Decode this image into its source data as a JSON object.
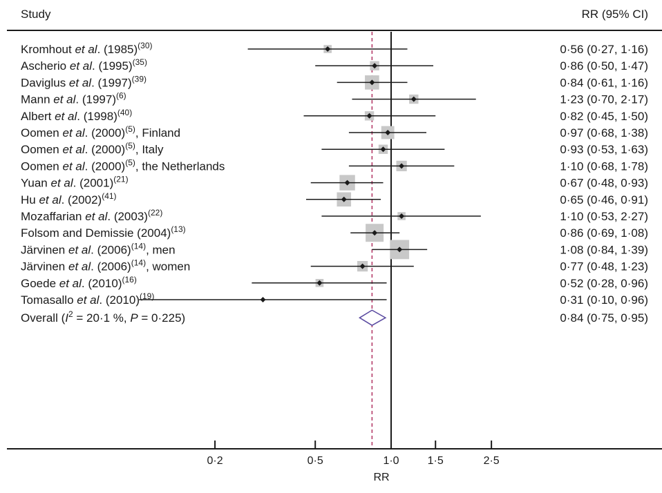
{
  "header": {
    "study_label": "Study",
    "estimate_label": "RR (95% CI)"
  },
  "chart_data": {
    "type": "forest",
    "xlabel": "RR",
    "x_scale": "log",
    "xlim": [
      0.1,
      3.5
    ],
    "xticks": [
      {
        "value": 0.2,
        "label": "0·2"
      },
      {
        "value": 0.5,
        "label": "0·5"
      },
      {
        "value": 1.0,
        "label": "1·0"
      },
      {
        "value": 1.5,
        "label": "1·5"
      },
      {
        "value": 2.5,
        "label": "2·5"
      }
    ],
    "null_line": 1.0,
    "pooled_line": 0.84,
    "studies": [
      {
        "pre": "Kromhout ",
        "it": "et al",
        "post": ". (1985)",
        "sup": "(30)",
        "tail": "",
        "rr": 0.56,
        "lo": 0.27,
        "hi": 1.16,
        "weight": 2,
        "ci_text": "0·56 (0·27, 1·16)"
      },
      {
        "pre": "Ascherio ",
        "it": "et al",
        "post": ". (1995)",
        "sup": "(35)",
        "tail": "",
        "rr": 0.86,
        "lo": 0.5,
        "hi": 1.47,
        "weight": 3,
        "ci_text": "0·86 (0·50, 1·47)"
      },
      {
        "pre": "Daviglus ",
        "it": "et al",
        "post": ". (1997)",
        "sup": "(39)",
        "tail": "",
        "rr": 0.84,
        "lo": 0.61,
        "hi": 1.16,
        "weight": 7,
        "ci_text": "0·84 (0·61, 1·16)"
      },
      {
        "pre": "Mann ",
        "it": "et al",
        "post": ". (1997)",
        "sup": "(6)",
        "tail": "",
        "rr": 1.23,
        "lo": 0.7,
        "hi": 2.17,
        "weight": 3,
        "ci_text": "1·23 (0·70, 2·17)"
      },
      {
        "pre": "Albert ",
        "it": "et al",
        "post": ". (1998)",
        "sup": "(40)",
        "tail": "",
        "rr": 0.82,
        "lo": 0.45,
        "hi": 1.5,
        "weight": 3,
        "ci_text": "0·82 (0·45, 1·50)"
      },
      {
        "pre": "Oomen ",
        "it": "et al",
        "post": ". (2000)",
        "sup": "(5)",
        "tail": ", Finland",
        "rr": 0.97,
        "lo": 0.68,
        "hi": 1.38,
        "weight": 6,
        "ci_text": "0·97 (0·68, 1·38)"
      },
      {
        "pre": "Oomen ",
        "it": "et al",
        "post": ". (2000)",
        "sup": "(5)",
        "tail": ", Italy",
        "rr": 0.93,
        "lo": 0.53,
        "hi": 1.63,
        "weight": 3,
        "ci_text": "0·93 (0·53, 1·63)"
      },
      {
        "pre": "Oomen ",
        "it": "et al",
        "post": ". (2000)",
        "sup": "(5)",
        "tail": ", the Netherlands",
        "rr": 1.1,
        "lo": 0.68,
        "hi": 1.78,
        "weight": 4,
        "ci_text": "1·10 (0·68, 1·78)"
      },
      {
        "pre": "Yuan ",
        "it": "et al",
        "post": ". (2001)",
        "sup": "(21)",
        "tail": "",
        "rr": 0.67,
        "lo": 0.48,
        "hi": 0.93,
        "weight": 8,
        "ci_text": "0·67 (0·48, 0·93)"
      },
      {
        "pre": "Hu ",
        "it": "et al",
        "post": ". (2002)",
        "sup": "(41)",
        "tail": "",
        "rr": 0.65,
        "lo": 0.46,
        "hi": 0.91,
        "weight": 7,
        "ci_text": "0·65 (0·46, 0·91)"
      },
      {
        "pre": "Mozaffarian ",
        "it": "et al",
        "post": ". (2003)",
        "sup": "(22)",
        "tail": "",
        "rr": 1.1,
        "lo": 0.53,
        "hi": 2.27,
        "weight": 2,
        "ci_text": "1·10 (0·53, 2·27)"
      },
      {
        "pre": "Folsom and Demissie (2004)",
        "it": "",
        "post": "",
        "sup": "(13)",
        "tail": "",
        "rr": 0.86,
        "lo": 0.69,
        "hi": 1.08,
        "weight": 10,
        "ci_text": "0·86 (0·69, 1·08)"
      },
      {
        "pre": "Järvinen ",
        "it": "et al",
        "post": ". (2006)",
        "sup": "(14)",
        "tail": ", men",
        "rr": 1.08,
        "lo": 0.84,
        "hi": 1.39,
        "weight": 11,
        "ci_text": "1·08 (0·84, 1·39)"
      },
      {
        "pre": "Järvinen ",
        "it": "et al",
        "post": ". (2006)",
        "sup": "(14)",
        "tail": ", women",
        "rr": 0.77,
        "lo": 0.48,
        "hi": 1.23,
        "weight": 4,
        "ci_text": "0·77 (0·48, 1·23)"
      },
      {
        "pre": "Goede ",
        "it": "et al",
        "post": ". (2010)",
        "sup": "(16)",
        "tail": "",
        "rr": 0.52,
        "lo": 0.28,
        "hi": 0.96,
        "weight": 2,
        "ci_text": "0·52 (0·28, 0·96)"
      },
      {
        "pre": "Tomasallo ",
        "it": "et al",
        "post": ". (2010)",
        "sup": "(19)",
        "tail": "",
        "rr": 0.31,
        "lo": 0.1,
        "hi": 0.96,
        "weight": 0,
        "ci_text": "0·31 (0·10, 0·96)"
      }
    ],
    "overall": {
      "label_pre": "Overall (",
      "label_i": "I",
      "label_sup": "2",
      "label_mid": " = 20·1 %, ",
      "label_p": "P",
      "label_post": " = 0·225)",
      "rr": 0.84,
      "lo": 0.75,
      "hi": 0.95,
      "ci_text": "0·84 (0·75, 0·95)"
    },
    "colors": {
      "ink": "#1a1a1a",
      "weight_box": "#c8c8c8",
      "pooled_line": "#b03060",
      "diamond": "#5a4aa0"
    }
  }
}
